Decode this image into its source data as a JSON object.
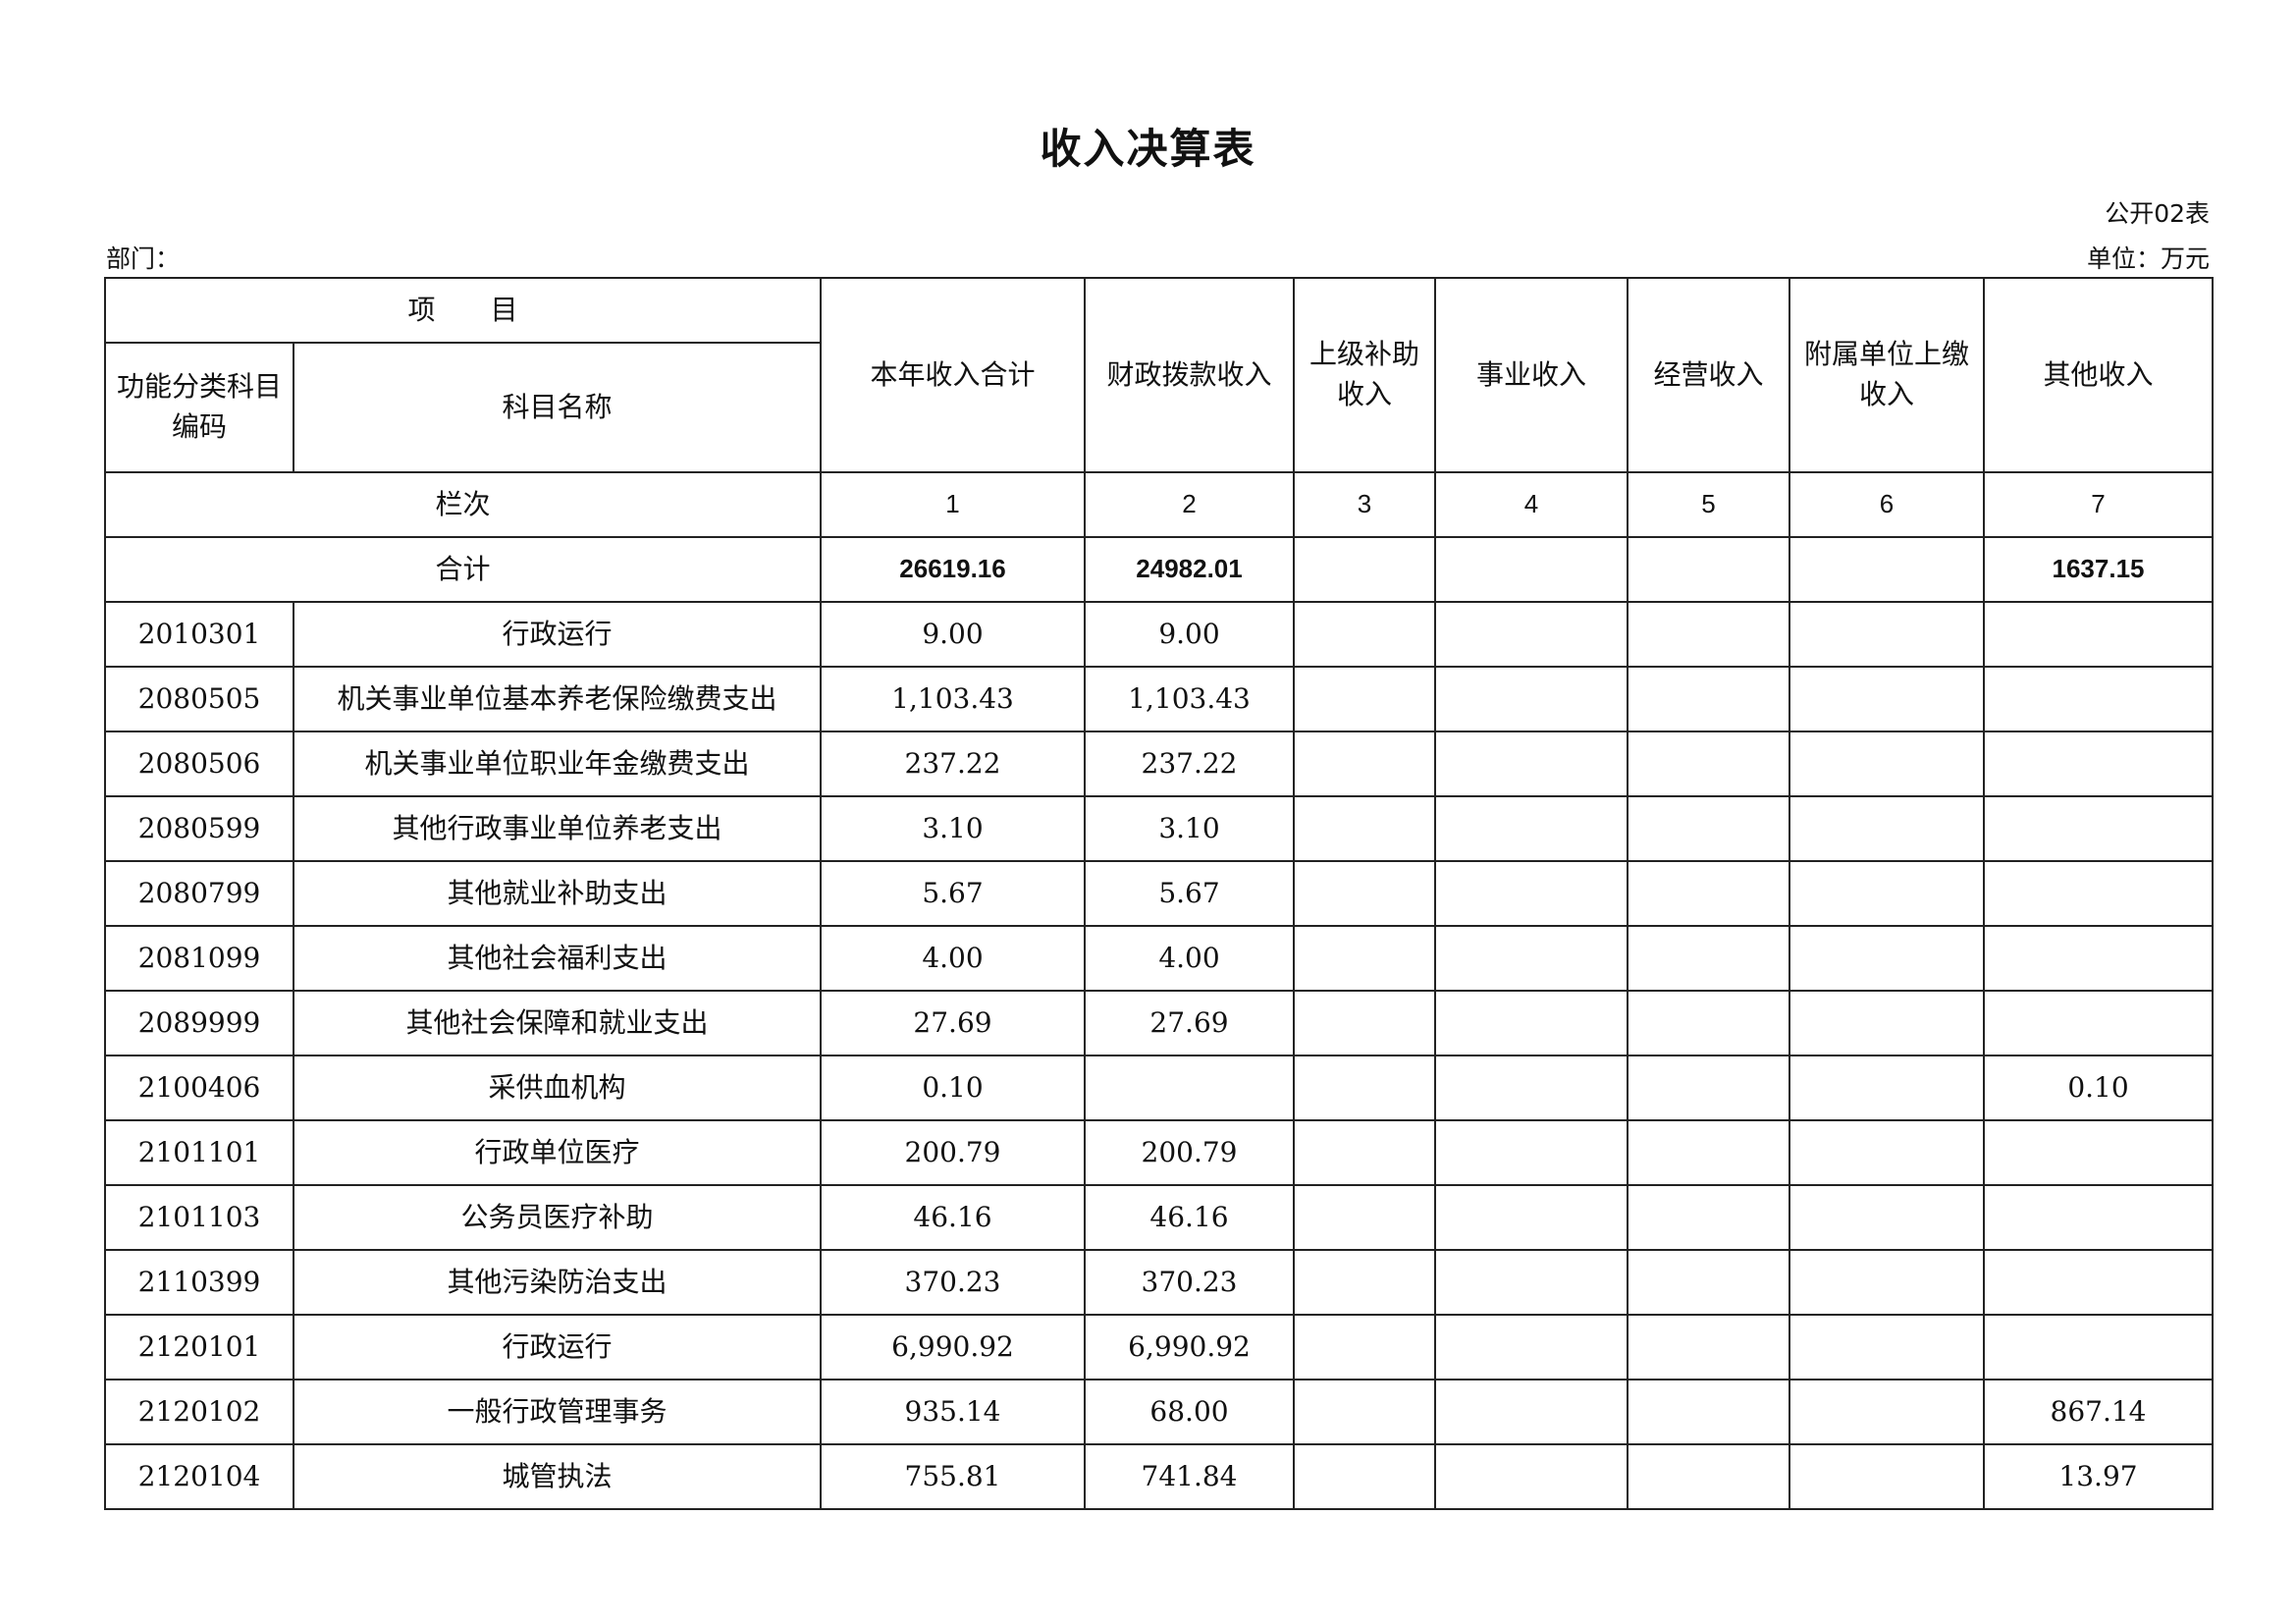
{
  "title": "收入决算表",
  "form_no": "公开02表",
  "department_label": "部门：",
  "unit_label": "单位：万元",
  "headers": {
    "item": "项　　目",
    "code": "功能分类科目编码",
    "name": "科目名称",
    "cols": [
      "本年收入合计",
      "财政拨款收入",
      "上级补助收入",
      "事业收入",
      "经营收入",
      "附属单位上缴收入",
      "其他收入"
    ]
  },
  "column_index_label": "栏次",
  "column_index": [
    "1",
    "2",
    "3",
    "4",
    "5",
    "6",
    "7"
  ],
  "total": {
    "label": "合计",
    "values": [
      "26619.16",
      "24982.01",
      "",
      "",
      "",
      "",
      "1637.15"
    ]
  },
  "rows": [
    {
      "code": "2010301",
      "name": "行政运行",
      "values": [
        "9.00",
        "9.00",
        "",
        "",
        "",
        "",
        ""
      ]
    },
    {
      "code": "2080505",
      "name": "机关事业单位基本养老保险缴费支出",
      "values": [
        "1,103.43",
        "1,103.43",
        "",
        "",
        "",
        "",
        ""
      ]
    },
    {
      "code": "2080506",
      "name": "机关事业单位职业年金缴费支出",
      "values": [
        "237.22",
        "237.22",
        "",
        "",
        "",
        "",
        ""
      ]
    },
    {
      "code": "2080599",
      "name": "其他行政事业单位养老支出",
      "values": [
        "3.10",
        "3.10",
        "",
        "",
        "",
        "",
        ""
      ]
    },
    {
      "code": "2080799",
      "name": "其他就业补助支出",
      "values": [
        "5.67",
        "5.67",
        "",
        "",
        "",
        "",
        ""
      ]
    },
    {
      "code": "2081099",
      "name": "其他社会福利支出",
      "values": [
        "4.00",
        "4.00",
        "",
        "",
        "",
        "",
        ""
      ]
    },
    {
      "code": "2089999",
      "name": "其他社会保障和就业支出",
      "values": [
        "27.69",
        "27.69",
        "",
        "",
        "",
        "",
        ""
      ]
    },
    {
      "code": "2100406",
      "name": "采供血机构",
      "values": [
        "0.10",
        "",
        "",
        "",
        "",
        "",
        "0.10"
      ]
    },
    {
      "code": "2101101",
      "name": "行政单位医疗",
      "values": [
        "200.79",
        "200.79",
        "",
        "",
        "",
        "",
        ""
      ]
    },
    {
      "code": "2101103",
      "name": "公务员医疗补助",
      "values": [
        "46.16",
        "46.16",
        "",
        "",
        "",
        "",
        ""
      ]
    },
    {
      "code": "2110399",
      "name": "其他污染防治支出",
      "values": [
        "370.23",
        "370.23",
        "",
        "",
        "",
        "",
        ""
      ]
    },
    {
      "code": "2120101",
      "name": "行政运行",
      "values": [
        "6,990.92",
        "6,990.92",
        "",
        "",
        "",
        "",
        ""
      ]
    },
    {
      "code": "2120102",
      "name": "一般行政管理事务",
      "values": [
        "935.14",
        "68.00",
        "",
        "",
        "",
        "",
        "867.14"
      ]
    },
    {
      "code": "2120104",
      "name": "城管执法",
      "values": [
        "755.81",
        "741.84",
        "",
        "",
        "",
        "",
        "13.97"
      ]
    }
  ]
}
